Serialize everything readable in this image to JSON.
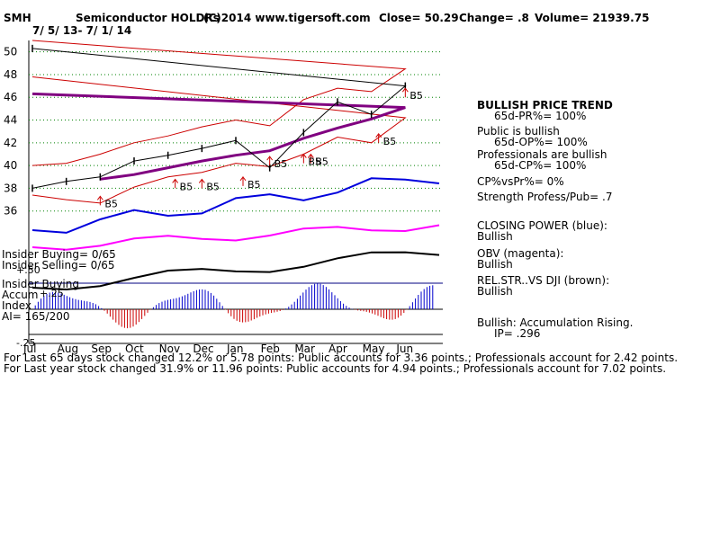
{
  "header": {
    "ticker": "SMH",
    "name": "Semiconductor HOLDRs",
    "copyright": "(C)2014 www.tigersoft.com",
    "close_label": "Close=  50.29",
    "change_label": "Change= .8",
    "volume_label": "Volume= 21939.75",
    "date_range": "7/ 5/ 13-  7/ 1/ 14"
  },
  "left_labels": {
    "insider_buying": "Insider Buying= 0/65",
    "insider_selling": "Insider Selling= 0/65",
    "plus50": "+.50",
    "insider_buying_row": "Insider Buying",
    "accum": "Accum",
    "plus25": "+.25",
    "index": "Index",
    "ai": "AI= 165/200",
    "minus25": "-.25"
  },
  "right_panel": {
    "trend_title": "BULLISH PRICE TREND",
    "pr": "65d-PR%= 100%",
    "public_title": "Public is bullish",
    "op": "65d-OP%= 100%",
    "prof_title": "Professionals are bullish",
    "cp": "65d-CP%= 100%",
    "cpvspr": "CP%vsPr%=  0%",
    "strength": "Strength Profess/Pub= .7",
    "closing_power": "CLOSING POWER (blue):",
    "closing_power_v": "Bullish",
    "obv": "OBV (magenta):",
    "obv_v": "Bullish",
    "relstr": "REL.STR..VS DJI (brown):",
    "relstr_v": "Bullish",
    "accum": "Bullish: Accumulation Rising.",
    "ip": "IP=  .296"
  },
  "footer": {
    "line1": "For Last 65 days stock changed  12.2% or  5.78 points:  Public accounts for  3.36 points.;  Professionals account for  2.42 points.",
    "line2": "For Last year stock changed  31.9% or  11.96 points:  Public accounts for  4.94 points.;  Professionals account for  7.02 points."
  },
  "colors": {
    "price": "#000000",
    "band": "#cc0000",
    "ma": "#800080",
    "closing_power": "#0000dd",
    "obv": "#ff00ff",
    "relstr": "#8b0000",
    "grid": "#008000",
    "accum_pos": "#0000cc",
    "accum_neg": "#cc0000"
  },
  "chart_data": {
    "type": "line",
    "title": "Semiconductor HOLDRs",
    "ylim": [
      34,
      51
    ],
    "y_ticks": [
      36,
      38,
      40,
      42,
      44,
      46,
      48,
      50
    ],
    "x_ticks": [
      "Aug",
      "Sep",
      "Oct",
      "Nov",
      "Dec",
      "Jan",
      "Feb",
      "Mar",
      "Apr",
      "May",
      "Jun",
      "Jul"
    ],
    "buy_signal_label": "B5",
    "series": [
      {
        "key": "price",
        "x": [
          "Jul",
          "Aug",
          "Sep",
          "Oct",
          "Nov",
          "Dec",
          "Jan",
          "Feb",
          "Mar",
          "Apr",
          "May",
          "Jun",
          "Jul"
        ],
        "values": [
          38.0,
          38.6,
          39.0,
          40.4,
          40.9,
          41.5,
          42.2,
          39.8,
          42.9,
          45.6,
          44.5,
          47.0,
          50.3
        ]
      },
      {
        "key": "upper_band",
        "x": [
          "Jul",
          "Aug",
          "Sep",
          "Oct",
          "Nov",
          "Dec",
          "Jan",
          "Feb",
          "Mar",
          "Apr",
          "May",
          "Jun",
          "Jul"
        ],
        "values": [
          40.0,
          40.2,
          41.0,
          42.0,
          42.6,
          43.4,
          44.0,
          43.5,
          45.8,
          46.8,
          46.5,
          48.5,
          51.0
        ]
      },
      {
        "key": "lower_band",
        "x": [
          "Jul",
          "Aug",
          "Sep",
          "Oct",
          "Nov",
          "Dec",
          "Jan",
          "Feb",
          "Mar",
          "Apr",
          "May",
          "Jun",
          "Jul"
        ],
        "values": [
          37.4,
          37.0,
          36.7,
          38.1,
          39.0,
          39.4,
          40.2,
          39.9,
          41.0,
          42.5,
          42.0,
          44.2,
          47.8
        ]
      },
      {
        "key": "ma200",
        "x": [
          "Sep",
          "Oct",
          "Nov",
          "Dec",
          "Jan",
          "Feb",
          "Mar",
          "Apr",
          "May",
          "Jun",
          "Jul"
        ],
        "values": [
          38.8,
          39.2,
          39.8,
          40.4,
          40.9,
          41.3,
          42.4,
          43.3,
          44.1,
          45.1,
          46.3
        ]
      }
    ],
    "buy_signals": [
      {
        "x": "Sep",
        "y": 36.5
      },
      {
        "x": "Nov",
        "y": 38.0
      },
      {
        "x": "Dec",
        "y": 38.0
      },
      {
        "x": "Jan",
        "y": 38.2
      },
      {
        "x": "Feb",
        "y": 40.0
      },
      {
        "x": "Mar",
        "y": 40.2
      },
      {
        "x": "Mar",
        "y": 40.2
      },
      {
        "x": "May",
        "y": 42.0
      },
      {
        "x": "Jun",
        "y": 46.0
      }
    ]
  }
}
